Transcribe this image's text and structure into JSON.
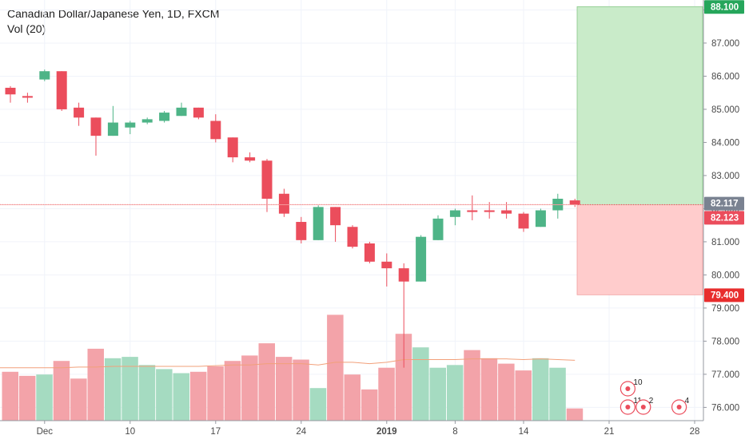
{
  "header": {
    "title": "Canadian Dollar/Japanese Yen, 1D, FXCM",
    "indicator": "Vol (20)"
  },
  "colors": {
    "up": "#4eb487",
    "down": "#eb4d5c",
    "vol_up": "#a5dbc1",
    "vol_down": "#f3a3a9",
    "vol_ma": "#f2a07a",
    "profit_zone": "#c9ebc9",
    "loss_zone": "#ffcccc",
    "current_price": "#eb4d5c"
  },
  "chart_data": {
    "type": "candlestick",
    "price_axis": {
      "min": 75.6,
      "max": 88.3,
      "ticks": [
        "76.000",
        "77.000",
        "78.000",
        "79.000",
        "80.000",
        "81.000",
        "82.000",
        "83.000",
        "84.000",
        "85.000",
        "86.000",
        "87.000",
        "88.000"
      ]
    },
    "time_axis": {
      "labels": [
        {
          "label": "Dec",
          "index": 2,
          "bold": false
        },
        {
          "label": "10",
          "index": 7,
          "bold": false
        },
        {
          "label": "17",
          "index": 12,
          "bold": false
        },
        {
          "label": "24",
          "index": 17,
          "bold": false
        },
        {
          "label": "2019",
          "index": 22,
          "bold": true
        },
        {
          "label": "8",
          "index": 26,
          "bold": false
        },
        {
          "label": "14",
          "index": 30,
          "bold": false
        },
        {
          "label": "21",
          "index": 35,
          "bold": false
        },
        {
          "label": "28",
          "index": 40,
          "bold": false
        }
      ]
    },
    "candles": [
      {
        "o": 85.65,
        "h": 85.7,
        "l": 85.2,
        "c": 85.45
      },
      {
        "o": 85.4,
        "h": 85.5,
        "l": 85.2,
        "c": 85.35
      },
      {
        "o": 85.9,
        "h": 86.2,
        "l": 85.85,
        "c": 86.15
      },
      {
        "o": 86.15,
        "h": 86.15,
        "l": 84.95,
        "c": 85.0
      },
      {
        "o": 85.05,
        "h": 85.2,
        "l": 84.5,
        "c": 84.75
      },
      {
        "o": 84.75,
        "h": 84.75,
        "l": 83.6,
        "c": 84.2
      },
      {
        "o": 84.2,
        "h": 85.1,
        "l": 84.2,
        "c": 84.6
      },
      {
        "o": 84.45,
        "h": 84.65,
        "l": 84.25,
        "c": 84.6
      },
      {
        "o": 84.6,
        "h": 84.75,
        "l": 84.55,
        "c": 84.7
      },
      {
        "o": 84.65,
        "h": 84.95,
        "l": 84.6,
        "c": 84.9
      },
      {
        "o": 84.8,
        "h": 85.2,
        "l": 84.8,
        "c": 85.05
      },
      {
        "o": 85.05,
        "h": 85.05,
        "l": 84.7,
        "c": 84.75
      },
      {
        "o": 84.65,
        "h": 84.85,
        "l": 84.0,
        "c": 84.1
      },
      {
        "o": 84.15,
        "h": 84.15,
        "l": 83.4,
        "c": 83.55
      },
      {
        "o": 83.55,
        "h": 83.7,
        "l": 83.4,
        "c": 83.45
      },
      {
        "o": 83.45,
        "h": 83.5,
        "l": 81.9,
        "c": 82.3
      },
      {
        "o": 82.45,
        "h": 82.6,
        "l": 81.75,
        "c": 81.85
      },
      {
        "o": 81.6,
        "h": 81.75,
        "l": 80.95,
        "c": 81.05
      },
      {
        "o": 81.05,
        "h": 82.1,
        "l": 81.05,
        "c": 82.05
      },
      {
        "o": 82.05,
        "h": 82.05,
        "l": 81.0,
        "c": 81.5
      },
      {
        "o": 81.45,
        "h": 81.5,
        "l": 80.8,
        "c": 80.85
      },
      {
        "o": 80.95,
        "h": 81.0,
        "l": 80.35,
        "c": 80.4
      },
      {
        "o": 80.4,
        "h": 80.65,
        "l": 79.65,
        "c": 80.2
      },
      {
        "o": 80.2,
        "h": 80.35,
        "l": 77.2,
        "c": 79.8
      },
      {
        "o": 79.8,
        "h": 81.2,
        "l": 79.8,
        "c": 81.15
      },
      {
        "o": 81.05,
        "h": 81.8,
        "l": 81.05,
        "c": 81.7
      },
      {
        "o": 81.75,
        "h": 82.0,
        "l": 81.5,
        "c": 81.95
      },
      {
        "o": 81.95,
        "h": 82.4,
        "l": 81.65,
        "c": 81.9
      },
      {
        "o": 81.95,
        "h": 82.2,
        "l": 81.7,
        "c": 81.9
      },
      {
        "o": 81.95,
        "h": 82.2,
        "l": 81.7,
        "c": 81.85
      },
      {
        "o": 81.85,
        "h": 81.9,
        "l": 81.3,
        "c": 81.4
      },
      {
        "o": 81.45,
        "h": 82.0,
        "l": 81.45,
        "c": 81.95
      },
      {
        "o": 81.95,
        "h": 82.45,
        "l": 81.7,
        "c": 82.3
      },
      {
        "o": 82.25,
        "h": 82.3,
        "l": 82.05,
        "c": 82.12
      }
    ],
    "volume": {
      "axis_max": 9,
      "values": [
        3.6,
        3.3,
        3.4,
        4.4,
        3.1,
        5.3,
        4.6,
        4.7,
        4.1,
        3.8,
        3.5,
        3.6,
        4.0,
        4.4,
        4.8,
        5.7,
        4.7,
        4.5,
        2.4,
        7.8,
        3.4,
        2.3,
        3.9,
        6.4,
        5.4,
        3.9,
        4.1,
        5.2,
        4.6,
        4.2,
        3.7,
        4.6,
        3.9,
        0.9
      ],
      "ma": [
        3.9,
        3.9,
        3.9,
        3.9,
        3.95,
        3.95,
        4.0,
        4.0,
        4.0,
        4.0,
        4.0,
        4.0,
        4.05,
        4.1,
        4.1,
        4.2,
        4.2,
        4.2,
        4.1,
        4.3,
        4.3,
        4.2,
        4.3,
        4.5,
        4.5,
        4.5,
        4.5,
        4.55,
        4.55,
        4.55,
        4.5,
        4.55,
        4.5,
        4.45
      ]
    },
    "position": {
      "entry": "82.117",
      "target": "88.100",
      "stop": "79.400",
      "entry_value": 82.117,
      "target_value": 88.1,
      "stop_value": 79.4
    },
    "current_price": {
      "label": "82.123",
      "value": 82.123
    },
    "events": [
      {
        "label": "10",
        "index": 36,
        "row": 0
      },
      {
        "label": "11",
        "index": 36,
        "row": 1
      },
      {
        "label": "2",
        "index": 37,
        "row": 1
      },
      {
        "label": "4",
        "index": 39,
        "row": 1
      }
    ]
  }
}
